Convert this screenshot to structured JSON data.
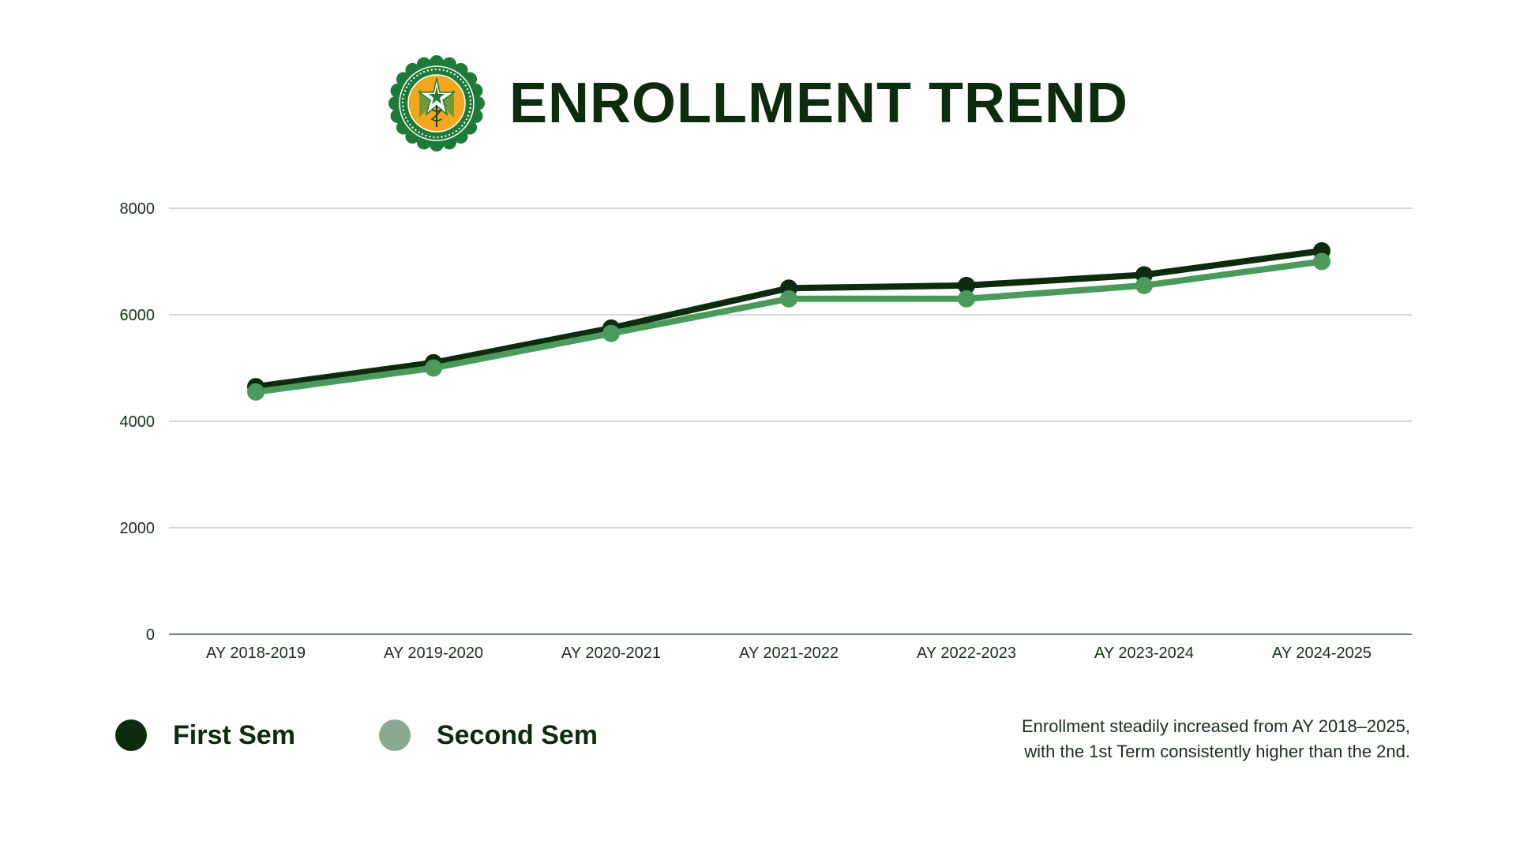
{
  "header": {
    "title": "ENROLLMENT TREND"
  },
  "colors": {
    "first_sem_line": "#0d2b0d",
    "second_sem_line": "#4a9a5c",
    "first_sem_legend": "#0d2b0d",
    "second_sem_legend": "#88a890",
    "grid": "#bdbdbd",
    "axis": "#3c5a3c",
    "seal_outer": "#1f7a3a",
    "seal_inner": "#f2a81d"
  },
  "icons": {
    "seal": "institution-seal-icon"
  },
  "chart_data": {
    "type": "line",
    "title": "ENROLLMENT TREND",
    "xlabel": "",
    "ylabel": "",
    "categories": [
      "AY 2018-2019",
      "AY 2019-2020",
      "AY 2020-2021",
      "AY 2021-2022",
      "AY 2022-2023",
      "AY 2023-2024",
      "AY 2024-2025"
    ],
    "y_ticks": [
      "0",
      "2000",
      "4000",
      "6000",
      "8000"
    ],
    "ylim": [
      0,
      8000
    ],
    "grid": true,
    "legend_position": "bottom-left",
    "series": [
      {
        "name": "First Sem",
        "values": [
          4650,
          5100,
          5750,
          6500,
          6550,
          6750,
          7200
        ]
      },
      {
        "name": "Second Sem",
        "values": [
          4550,
          5000,
          5650,
          6300,
          6300,
          6550,
          7000
        ]
      }
    ]
  },
  "legend": {
    "items": [
      {
        "label": "First Sem"
      },
      {
        "label": "Second Sem"
      }
    ]
  },
  "caption": {
    "line1": "Enrollment steadily increased from AY 2018–2025,",
    "line2": "with the 1st Term consistently higher than the 2nd."
  }
}
